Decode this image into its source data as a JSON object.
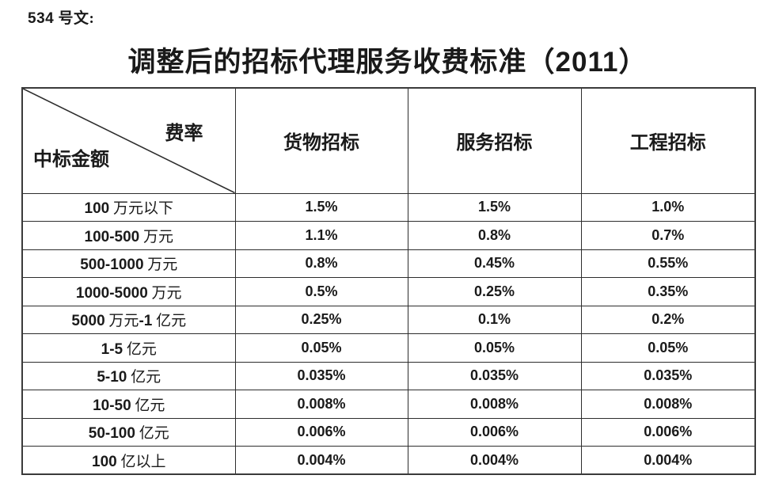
{
  "page": {
    "doc_number": "534 号文:",
    "title": "调整后的招标代理服务收费标准（2011）"
  },
  "colors": {
    "background": "#ffffff",
    "text": "#1a1a1a",
    "table_border": "#2d2d2d"
  },
  "table": {
    "corner": {
      "top_right_label": "费率",
      "bottom_left_label": "中标金额"
    },
    "columns": [
      "货物招标",
      "服务招标",
      "工程招标"
    ],
    "rows": [
      {
        "label": "100 万元以下",
        "values": [
          "1.5%",
          "1.5%",
          "1.0%"
        ]
      },
      {
        "label": "100-500 万元",
        "values": [
          "1.1%",
          "0.8%",
          "0.7%"
        ]
      },
      {
        "label": "500-1000 万元",
        "values": [
          "0.8%",
          "0.45%",
          "0.55%"
        ]
      },
      {
        "label": "1000-5000 万元",
        "values": [
          "0.5%",
          "0.25%",
          "0.35%"
        ]
      },
      {
        "label": "5000 万元-1 亿元",
        "values": [
          "0.25%",
          "0.1%",
          "0.2%"
        ]
      },
      {
        "label": "1-5 亿元",
        "values": [
          "0.05%",
          "0.05%",
          "0.05%"
        ]
      },
      {
        "label": "5-10 亿元",
        "values": [
          "0.035%",
          "0.035%",
          "0.035%"
        ]
      },
      {
        "label": "10-50 亿元",
        "values": [
          "0.008%",
          "0.008%",
          "0.008%"
        ]
      },
      {
        "label": "50-100 亿元",
        "values": [
          "0.006%",
          "0.006%",
          "0.006%"
        ]
      },
      {
        "label": "100 亿以上",
        "values": [
          "0.004%",
          "0.004%",
          "0.004%"
        ]
      }
    ]
  }
}
